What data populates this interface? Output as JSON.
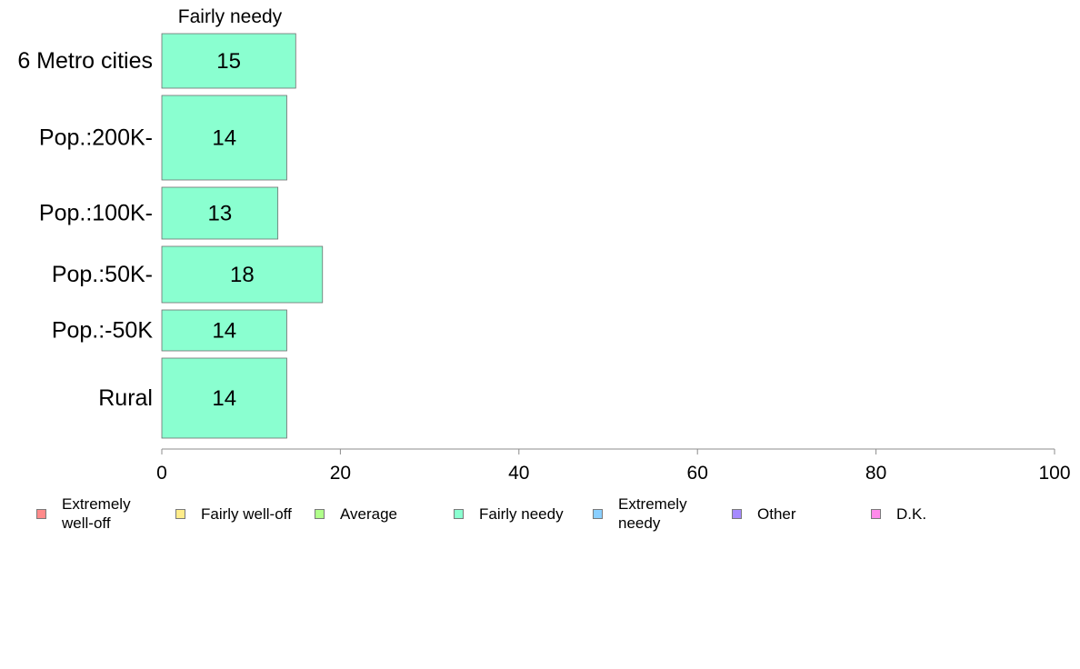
{
  "chart_data": {
    "type": "bar",
    "orientation": "horizontal",
    "panel_title": "Fairly needy",
    "categories": [
      "6 Metro cities",
      "Pop.:200K-",
      "Pop.:100K-",
      "Pop.:50K-",
      "Pop.:-50K",
      "Rural"
    ],
    "series": [
      {
        "name": "Fairly needy",
        "values": [
          15,
          14,
          13,
          18,
          14,
          14
        ],
        "color": "#8affd0"
      }
    ],
    "xlim": [
      0,
      100
    ],
    "xticks": [
      "0",
      "20",
      "40",
      "60",
      "80",
      "100"
    ],
    "grid": false,
    "legend": {
      "placement": "bottom",
      "items": [
        {
          "label": "Extremely\nwell-off",
          "color": "#ff8a8a"
        },
        {
          "label": "Fairly well-off",
          "color": "#ffec8a"
        },
        {
          "label": "Average",
          "color": "#b0ff8a"
        },
        {
          "label": "Fairly needy",
          "color": "#8affd0"
        },
        {
          "label": "Extremely\nneedy",
          "color": "#8acfff"
        },
        {
          "label": "Other",
          "color": "#a68aff"
        },
        {
          "label": "D.K.",
          "color": "#ff8aea"
        }
      ]
    }
  }
}
